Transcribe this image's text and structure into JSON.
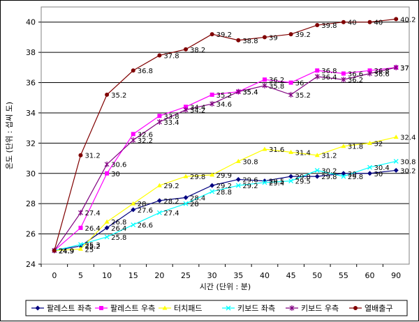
{
  "chart_data": {
    "type": "line",
    "title": "",
    "xlabel": "시간 (단위 : 분)",
    "ylabel": "온도 (단위 : 섭씨 도)",
    "x": [
      0,
      5,
      10,
      15,
      20,
      25,
      30,
      35,
      40,
      45,
      50,
      55,
      60,
      90
    ],
    "x_categories": [
      "0",
      "5",
      "10",
      "15",
      "20",
      "25",
      "30",
      "35",
      "40",
      "45",
      "50",
      "55",
      "60",
      "90"
    ],
    "ylim": [
      24,
      41
    ],
    "yticks": [
      24,
      26,
      28,
      30,
      32,
      34,
      36,
      38,
      40
    ],
    "grid": true,
    "legend_position": "bottom",
    "series": [
      {
        "name": "팔레스트 좌측",
        "color": "#000080",
        "marker": "diamond",
        "values": [
          24.9,
          25.2,
          26.4,
          27.6,
          28.2,
          28.4,
          29.2,
          29.6,
          29.5,
          29.8,
          29.8,
          30,
          30,
          30.2
        ]
      },
      {
        "name": "팔레스트 우측",
        "color": "#ff00ff",
        "marker": "square",
        "values": [
          24.9,
          26.4,
          30,
          32.6,
          33.8,
          34.4,
          35.2,
          35.4,
          36.2,
          36,
          36.8,
          36.6,
          36.8,
          37
        ]
      },
      {
        "name": "터치패드",
        "color": "#ffff00",
        "marker": "triangle",
        "values": [
          24.9,
          25,
          26.8,
          28,
          29.2,
          29.8,
          29.9,
          30.8,
          31.6,
          31.4,
          31.2,
          31.8,
          32,
          32.4
        ]
      },
      {
        "name": "키보드 좌측",
        "color": "#00ffff",
        "marker": "x",
        "values": [
          24.9,
          25.3,
          25.8,
          26.6,
          27.4,
          28,
          28.8,
          29.2,
          29.4,
          29.5,
          30.2,
          29.8,
          30.4,
          30.8
        ]
      },
      {
        "name": "키보드 우측",
        "color": "#800080",
        "marker": "star",
        "values": [
          24.9,
          27.4,
          30.6,
          32.2,
          33.4,
          34.2,
          34.6,
          35.4,
          35.8,
          35.2,
          36.4,
          36.2,
          36.6,
          37
        ]
      },
      {
        "name": "열배출구",
        "color": "#800000",
        "marker": "circle",
        "values": [
          24.9,
          31.2,
          35.2,
          36.8,
          37.8,
          38.2,
          39.2,
          38.8,
          39,
          39.2,
          39.8,
          40,
          40,
          40.2
        ]
      }
    ]
  }
}
